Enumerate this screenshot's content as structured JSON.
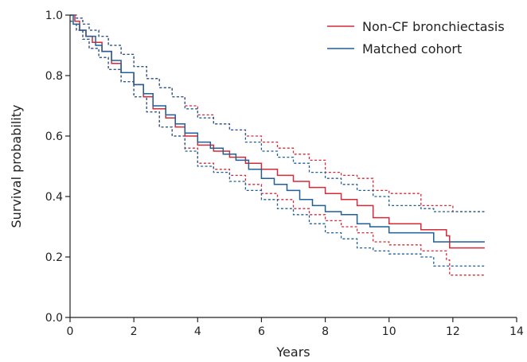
{
  "chart_data": {
    "type": "line",
    "title": "",
    "xlabel": "Years",
    "ylabel": "Survival probability",
    "xlim": [
      0,
      14
    ],
    "ylim": [
      0,
      1.0
    ],
    "x_ticks": [
      0,
      2,
      4,
      6,
      8,
      10,
      12,
      14
    ],
    "x_tick_labels": [
      "0",
      "2",
      "4",
      "6",
      "8",
      "10",
      "12",
      "14"
    ],
    "y_ticks": [
      0,
      0.2,
      0.4,
      0.6,
      0.8,
      1.0
    ],
    "y_tick_labels": [
      "0.0",
      "0.2",
      "0.4",
      "0.6",
      "0.8",
      "1.0"
    ],
    "grid": false,
    "legend_position": "top-right",
    "series": [
      {
        "name": "Non-CF bronchiectasis",
        "color": "#d42a3a",
        "style": "solid",
        "step": true,
        "points": [
          [
            0,
            1.0
          ],
          [
            0.15,
            0.98
          ],
          [
            0.3,
            0.95
          ],
          [
            0.5,
            0.93
          ],
          [
            0.7,
            0.91
          ],
          [
            1.0,
            0.88
          ],
          [
            1.3,
            0.84
          ],
          [
            1.6,
            0.81
          ],
          [
            2.0,
            0.77
          ],
          [
            2.3,
            0.73
          ],
          [
            2.6,
            0.69
          ],
          [
            3.0,
            0.66
          ],
          [
            3.3,
            0.63
          ],
          [
            3.6,
            0.6
          ],
          [
            4.0,
            0.57
          ],
          [
            4.5,
            0.55
          ],
          [
            5.0,
            0.53
          ],
          [
            5.5,
            0.51
          ],
          [
            6.0,
            0.49
          ],
          [
            6.5,
            0.47
          ],
          [
            7.0,
            0.45
          ],
          [
            7.5,
            0.43
          ],
          [
            8.0,
            0.41
          ],
          [
            8.5,
            0.39
          ],
          [
            9.0,
            0.37
          ],
          [
            9.5,
            0.33
          ],
          [
            10.0,
            0.31
          ],
          [
            11.0,
            0.29
          ],
          [
            11.8,
            0.27
          ],
          [
            11.9,
            0.23
          ],
          [
            13.0,
            0.23
          ]
        ]
      },
      {
        "name": "Matched cohort",
        "color": "#1f5f9a",
        "style": "solid",
        "step": true,
        "points": [
          [
            0,
            1.0
          ],
          [
            0.1,
            0.97
          ],
          [
            0.3,
            0.95
          ],
          [
            0.5,
            0.93
          ],
          [
            0.8,
            0.9
          ],
          [
            1.0,
            0.88
          ],
          [
            1.3,
            0.85
          ],
          [
            1.6,
            0.81
          ],
          [
            2.0,
            0.77
          ],
          [
            2.3,
            0.74
          ],
          [
            2.6,
            0.7
          ],
          [
            3.0,
            0.67
          ],
          [
            3.3,
            0.64
          ],
          [
            3.6,
            0.61
          ],
          [
            4.0,
            0.58
          ],
          [
            4.4,
            0.56
          ],
          [
            4.8,
            0.54
          ],
          [
            5.2,
            0.52
          ],
          [
            5.6,
            0.49
          ],
          [
            6.0,
            0.46
          ],
          [
            6.4,
            0.44
          ],
          [
            6.8,
            0.42
          ],
          [
            7.2,
            0.39
          ],
          [
            7.6,
            0.37
          ],
          [
            8.0,
            0.35
          ],
          [
            8.5,
            0.34
          ],
          [
            9.0,
            0.31
          ],
          [
            9.4,
            0.3
          ],
          [
            10.0,
            0.28
          ],
          [
            11.0,
            0.28
          ],
          [
            11.4,
            0.25
          ],
          [
            13.0,
            0.25
          ]
        ]
      },
      {
        "name": "",
        "color": "#d42a3a",
        "style": "dashed",
        "step": true,
        "points": [
          [
            0,
            1.0
          ],
          [
            0.2,
            0.99
          ],
          [
            0.4,
            0.97
          ],
          [
            0.6,
            0.95
          ],
          [
            0.9,
            0.93
          ],
          [
            1.2,
            0.9
          ],
          [
            1.6,
            0.87
          ],
          [
            2.0,
            0.83
          ],
          [
            2.4,
            0.79
          ],
          [
            2.8,
            0.76
          ],
          [
            3.2,
            0.73
          ],
          [
            3.6,
            0.7
          ],
          [
            4.0,
            0.67
          ],
          [
            4.5,
            0.64
          ],
          [
            5.0,
            0.62
          ],
          [
            5.5,
            0.6
          ],
          [
            6.0,
            0.58
          ],
          [
            6.5,
            0.56
          ],
          [
            7.0,
            0.54
          ],
          [
            7.5,
            0.52
          ],
          [
            8.0,
            0.48
          ],
          [
            8.5,
            0.47
          ],
          [
            9.0,
            0.46
          ],
          [
            9.5,
            0.42
          ],
          [
            10.0,
            0.41
          ],
          [
            11.0,
            0.37
          ],
          [
            12.0,
            0.37
          ],
          [
            12.0,
            0.35
          ],
          [
            13.0,
            0.35
          ]
        ]
      },
      {
        "name": "",
        "color": "#d42a3a",
        "style": "dashed",
        "step": true,
        "points": [
          [
            0,
            0.98
          ],
          [
            0.2,
            0.95
          ],
          [
            0.4,
            0.92
          ],
          [
            0.6,
            0.89
          ],
          [
            0.9,
            0.86
          ],
          [
            1.2,
            0.82
          ],
          [
            1.6,
            0.78
          ],
          [
            2.0,
            0.73
          ],
          [
            2.4,
            0.68
          ],
          [
            2.8,
            0.63
          ],
          [
            3.2,
            0.6
          ],
          [
            3.6,
            0.56
          ],
          [
            4.0,
            0.51
          ],
          [
            4.5,
            0.49
          ],
          [
            5.0,
            0.47
          ],
          [
            5.5,
            0.44
          ],
          [
            6.0,
            0.41
          ],
          [
            6.5,
            0.39
          ],
          [
            7.0,
            0.36
          ],
          [
            7.5,
            0.34
          ],
          [
            8.0,
            0.32
          ],
          [
            8.5,
            0.3
          ],
          [
            9.0,
            0.28
          ],
          [
            9.5,
            0.25
          ],
          [
            10.0,
            0.24
          ],
          [
            11.0,
            0.22
          ],
          [
            11.8,
            0.19
          ],
          [
            11.9,
            0.14
          ],
          [
            13.0,
            0.14
          ]
        ]
      },
      {
        "name": "",
        "color": "#1f5f9a",
        "style": "dashed",
        "step": true,
        "points": [
          [
            0,
            1.0
          ],
          [
            0.2,
            0.99
          ],
          [
            0.4,
            0.97
          ],
          [
            0.6,
            0.95
          ],
          [
            0.9,
            0.93
          ],
          [
            1.2,
            0.9
          ],
          [
            1.6,
            0.87
          ],
          [
            2.0,
            0.83
          ],
          [
            2.4,
            0.79
          ],
          [
            2.8,
            0.76
          ],
          [
            3.2,
            0.73
          ],
          [
            3.6,
            0.69
          ],
          [
            4.0,
            0.66
          ],
          [
            4.5,
            0.64
          ],
          [
            5.0,
            0.62
          ],
          [
            5.5,
            0.58
          ],
          [
            6.0,
            0.55
          ],
          [
            6.5,
            0.53
          ],
          [
            7.0,
            0.51
          ],
          [
            7.5,
            0.48
          ],
          [
            8.0,
            0.46
          ],
          [
            8.5,
            0.44
          ],
          [
            9.0,
            0.42
          ],
          [
            9.5,
            0.4
          ],
          [
            10.0,
            0.37
          ],
          [
            11.0,
            0.36
          ],
          [
            11.4,
            0.35
          ],
          [
            13.0,
            0.35
          ]
        ]
      },
      {
        "name": "",
        "color": "#1f5f9a",
        "style": "dashed",
        "step": true,
        "points": [
          [
            0,
            0.98
          ],
          [
            0.2,
            0.95
          ],
          [
            0.4,
            0.92
          ],
          [
            0.6,
            0.89
          ],
          [
            0.9,
            0.86
          ],
          [
            1.2,
            0.82
          ],
          [
            1.6,
            0.78
          ],
          [
            2.0,
            0.73
          ],
          [
            2.4,
            0.68
          ],
          [
            2.8,
            0.63
          ],
          [
            3.2,
            0.6
          ],
          [
            3.6,
            0.55
          ],
          [
            4.0,
            0.5
          ],
          [
            4.5,
            0.48
          ],
          [
            5.0,
            0.45
          ],
          [
            5.5,
            0.42
          ],
          [
            6.0,
            0.39
          ],
          [
            6.5,
            0.36
          ],
          [
            7.0,
            0.34
          ],
          [
            7.5,
            0.31
          ],
          [
            8.0,
            0.28
          ],
          [
            8.5,
            0.26
          ],
          [
            9.0,
            0.23
          ],
          [
            9.5,
            0.22
          ],
          [
            10.0,
            0.21
          ],
          [
            11.0,
            0.2
          ],
          [
            11.4,
            0.17
          ],
          [
            13.0,
            0.17
          ]
        ]
      }
    ]
  }
}
